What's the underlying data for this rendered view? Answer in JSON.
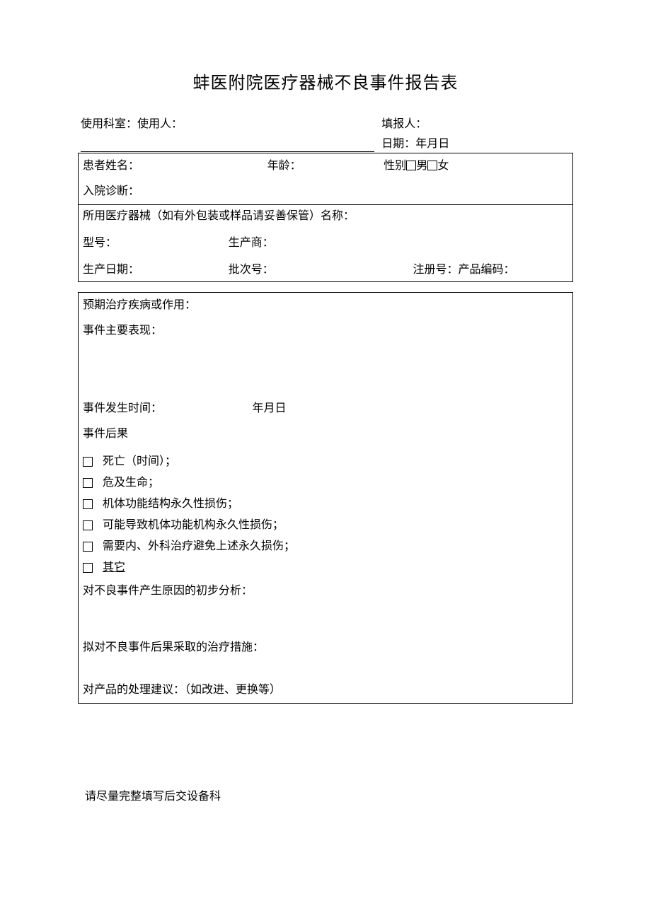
{
  "title": "蚌医附院医疗器械不良事件报告表",
  "header": {
    "dept_user_label": "使用科室：使用人：",
    "reporter_label": "填报人：",
    "date_label": "日期：年月日"
  },
  "patient": {
    "name_label": "患者姓名：",
    "age_label": "年龄：",
    "gender_label": "性别",
    "male": "男",
    "female": "女",
    "diagnosis_label": "入院诊断："
  },
  "device": {
    "name_label": "所用医疗器械（如有外包装或样品请妥善保管）名称：",
    "model_label": "型号：",
    "manufacturer_label": "生产商：",
    "prod_date_label": "生产日期：",
    "batch_label": "批次号：",
    "reg_label": "注册号：产品编码："
  },
  "event": {
    "expected_label": "预期治疗疾病或作用：",
    "manifestation_label": "事件主要表现：",
    "occur_time_label": "事件发生时间：",
    "occur_time_value": "年月日",
    "outcome_label": "事件后果",
    "outcomes": [
      "死亡（时间）；",
      "危及生命；",
      "机体功能结构永久性损伤；",
      "可能导致机体功能机构永久性损伤；",
      "需要内、外科治疗避免上述永久损伤；",
      "其它"
    ],
    "cause_label": "对不良事件产生原因的初步分析：",
    "treatment_label": "拟对不良事件后果采取的治疗措施：",
    "suggestion_label": "对产品的处理建议：（如改进、更换等）"
  },
  "footer": "请尽量完整填写后交设备科"
}
